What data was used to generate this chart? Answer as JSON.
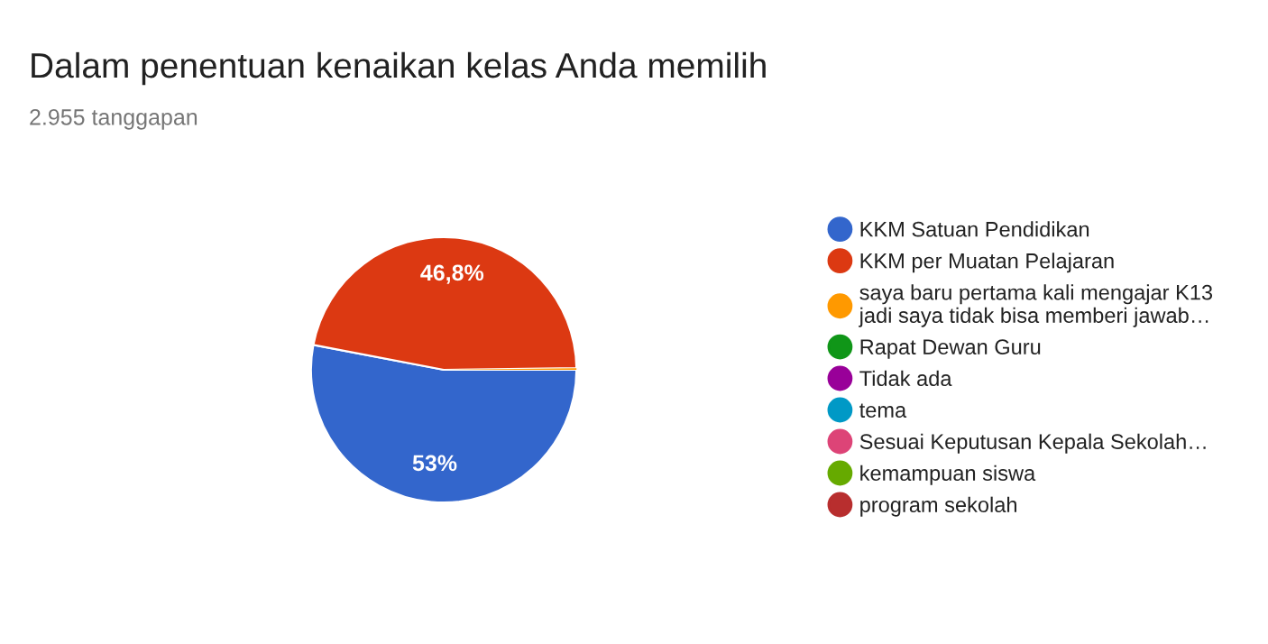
{
  "chart_data": {
    "type": "pie",
    "title": "Dalam penentuan kenaikan kelas Anda memilih",
    "subtitle": "2.955 tanggapan",
    "categories": [
      "KKM Satuan Pendidikan",
      "KKM per Muatan Pelajaran",
      "saya baru pertama kali mengajar K13\njadi saya tidak bisa memberi jawab…",
      "Rapat Dewan Guru",
      "Tidak ada",
      "tema",
      "Sesuai Keputusan Kepala Sekolah…",
      "kemampuan siswa",
      "program sekolah"
    ],
    "values": [
      53,
      46.8,
      0.2,
      null,
      null,
      null,
      null,
      null,
      null
    ],
    "colors": [
      "#3366cc",
      "#dc3912",
      "#ff9900",
      "#109618",
      "#990099",
      "#0099c6",
      "#dd4477",
      "#66aa00",
      "#b82e2e"
    ],
    "value_labels": [
      "53%",
      "46,8%",
      null,
      null,
      null,
      null,
      null,
      null,
      null
    ],
    "legend": "right"
  }
}
